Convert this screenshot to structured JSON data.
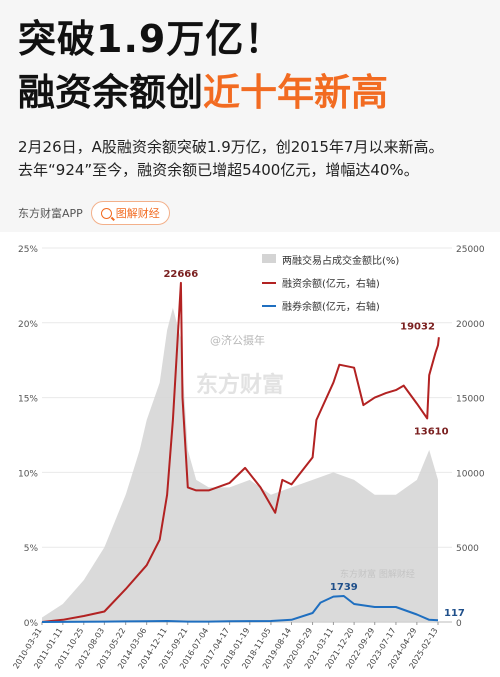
{
  "header": {
    "title_line1": "突破1.9万亿！",
    "title_line2_black": "融资余额创",
    "title_line2_orange": "近十年新高"
  },
  "description": {
    "line1": "2月26日，A股融资余额突破1.9万亿，创2015年7月以来新高。",
    "line2": "去年“924”至今，融资余额已增超5400亿元，增幅达40%。"
  },
  "app_bar": {
    "app_name": "东方财富APP",
    "button_label": "图解财经",
    "button_icon": "search-icon"
  },
  "colors": {
    "margin_financing": "#b22222",
    "securities_lending": "#1f6fc0",
    "trading_share": "#d4d4d4",
    "accent": "#f26b21"
  },
  "chart_data": {
    "type": "line",
    "x_ticks": [
      "2010-03-31",
      "2011-01-11",
      "2011-10-25",
      "2012-08-03",
      "2013-05-22",
      "2014-03-06",
      "2014-12-11",
      "2015-09-21",
      "2016-07-04",
      "2017-04-17",
      "2018-01-19",
      "2018-11-05",
      "2019-08-14",
      "2020-05-29",
      "2021-03-11",
      "2021-12-20",
      "2022-09-29",
      "2023-07-17",
      "2024-04-29",
      "2025-02-13"
    ],
    "y_left_ticks": [
      "0%",
      "5%",
      "10%",
      "15%",
      "20%",
      "25%"
    ],
    "y_left_lim": [
      0,
      25
    ],
    "y_right_ticks": [
      "0",
      "5000",
      "10000",
      "15000",
      "20000",
      "25000"
    ],
    "y_right_lim": [
      0,
      25000
    ],
    "grid": true,
    "legend": {
      "placement": "top-right",
      "entries": [
        "两融交易占成交金额比(%)",
        "融资余额(亿元，右轴)",
        "融券余额(亿元，右轴)"
      ]
    },
    "series": [
      {
        "name": "两融交易占成交金额比(%)",
        "axis": "left",
        "kind": "area",
        "x": [
          "2010-03-31",
          "2011-01-11",
          "2011-10-25",
          "2012-08-03",
          "2013-05-22",
          "2013-12-01",
          "2014-03-06",
          "2014-09-01",
          "2014-12-11",
          "2015-03-01",
          "2015-06-15",
          "2015-09-21",
          "2016-01-15",
          "2016-07-04",
          "2017-04-17",
          "2018-01-19",
          "2018-11-05",
          "2019-08-14",
          "2020-05-29",
          "2021-03-11",
          "2021-12-20",
          "2022-09-29",
          "2023-07-17",
          "2024-04-29",
          "2024-10-15",
          "2025-02-13"
        ],
        "values": [
          0.3,
          1.2,
          2.8,
          5.0,
          8.5,
          11.5,
          13.5,
          16.0,
          19.5,
          21.0,
          19.0,
          11.5,
          9.5,
          9.0,
          9.0,
          9.5,
          8.5,
          9.0,
          9.5,
          10.0,
          9.5,
          8.5,
          8.5,
          9.5,
          11.5,
          9.5
        ]
      },
      {
        "name": "融资余额(亿元，右轴)",
        "axis": "right",
        "kind": "line",
        "x": [
          "2010-03-31",
          "2011-01-11",
          "2011-10-25",
          "2012-08-03",
          "2013-05-22",
          "2014-03-06",
          "2014-09-01",
          "2014-12-11",
          "2015-03-01",
          "2015-06-18",
          "2015-07-10",
          "2015-09-21",
          "2016-01-15",
          "2016-07-04",
          "2017-04-17",
          "2017-11-15",
          "2018-06-15",
          "2019-01-03",
          "2019-04-10",
          "2019-08-14",
          "2020-05-29",
          "2020-07-20",
          "2021-03-11",
          "2021-06-01",
          "2021-12-20",
          "2022-04-26",
          "2022-09-29",
          "2023-03-01",
          "2023-07-17",
          "2023-11-01",
          "2024-04-29",
          "2024-09-18",
          "2024-10-15",
          "2025-01-10",
          "2025-02-13",
          "2025-02-26"
        ],
        "values": [
          0,
          150,
          400,
          700,
          2200,
          3800,
          5500,
          8500,
          13500,
          22666,
          15000,
          9000,
          8800,
          8800,
          9300,
          10300,
          9000,
          7300,
          9500,
          9200,
          11000,
          13500,
          16000,
          17200,
          17000,
          14500,
          15000,
          15300,
          15500,
          15800,
          14600,
          13610,
          16500,
          18000,
          18500,
          19032
        ]
      },
      {
        "name": "融券余额(亿元，右轴)",
        "axis": "right",
        "kind": "line",
        "x": [
          "2010-03-31",
          "2011-01-11",
          "2011-10-25",
          "2012-08-03",
          "2013-05-22",
          "2014-03-06",
          "2014-12-11",
          "2015-09-21",
          "2016-07-04",
          "2017-04-17",
          "2018-01-19",
          "2018-11-05",
          "2019-08-14",
          "2020-05-29",
          "2020-09-15",
          "2021-03-11",
          "2021-08-01",
          "2021-12-20",
          "2022-09-29",
          "2023-07-17",
          "2024-04-29",
          "2024-10-15",
          "2025-02-13"
        ],
        "values": [
          0,
          10,
          20,
          30,
          40,
          50,
          70,
          30,
          30,
          50,
          60,
          70,
          150,
          600,
          1300,
          1700,
          1739,
          1200,
          1000,
          1000,
          500,
          150,
          117
        ]
      }
    ],
    "annotations": [
      {
        "series": "融资余额(亿元，右轴)",
        "x": "2015-06-18",
        "value": 22666,
        "label": "22666"
      },
      {
        "series": "融资余额(亿元，右轴)",
        "x": "2025-02-26",
        "value": 19032,
        "label": "19032"
      },
      {
        "series": "融资余额(亿元，右轴)",
        "x": "2024-09-18",
        "value": 13610,
        "label": "13610"
      },
      {
        "series": "融券余额(亿元，右轴)",
        "x": "2021-08-01",
        "value": 1739,
        "label": "1739"
      },
      {
        "series": "融券余额(亿元，右轴)",
        "x": "2025-02-13",
        "value": 117,
        "label": "117"
      }
    ],
    "watermarks": [
      "@济公摄年",
      "东方财富",
      "东方财富 图解财经"
    ]
  }
}
